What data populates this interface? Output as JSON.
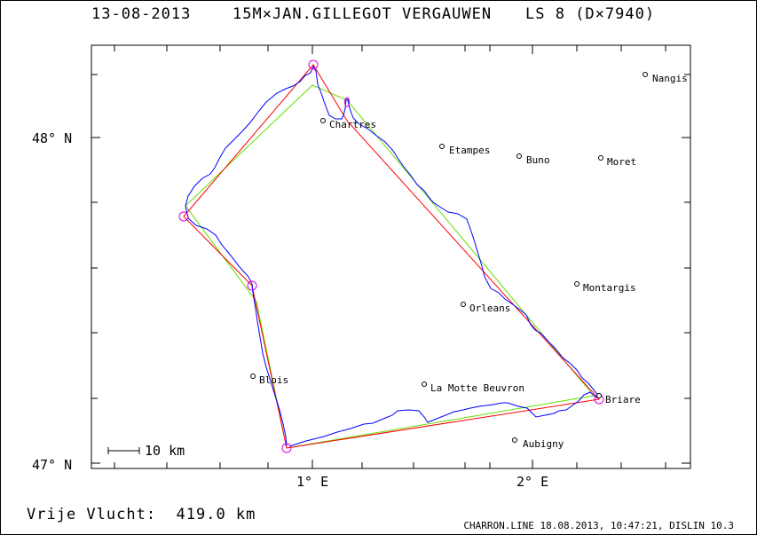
{
  "header": {
    "date": "13-08-2013",
    "pilot": "15M×JAN.GILLEGOT VERGAUWEN",
    "class": "LS 8 (D×7940)"
  },
  "axes": {
    "lat_labels": [
      "48° N",
      "47° N"
    ],
    "lon_labels": [
      "1° E",
      "2° E"
    ]
  },
  "scale_bar": "10 km",
  "towns": [
    {
      "name": "Nangis"
    },
    {
      "name": "Chartres"
    },
    {
      "name": "Etampes"
    },
    {
      "name": "Buno"
    },
    {
      "name": "Moret"
    },
    {
      "name": "Montargis"
    },
    {
      "name": "Orleans"
    },
    {
      "name": "Blois"
    },
    {
      "name": "La Motte Beuvron"
    },
    {
      "name": "Briare"
    },
    {
      "name": "Aubigny"
    }
  ],
  "free_flight": "Vrije Vlucht:  419.0 km",
  "footer": "CHARRON.LINE 18.08.2013, 10:47:21, DISLIN 10.3",
  "colors": {
    "track": "#0000ff",
    "optimized_route": "#ff0000",
    "declared_route": "#66dd00",
    "turnpoint": "#dd00dd"
  }
}
